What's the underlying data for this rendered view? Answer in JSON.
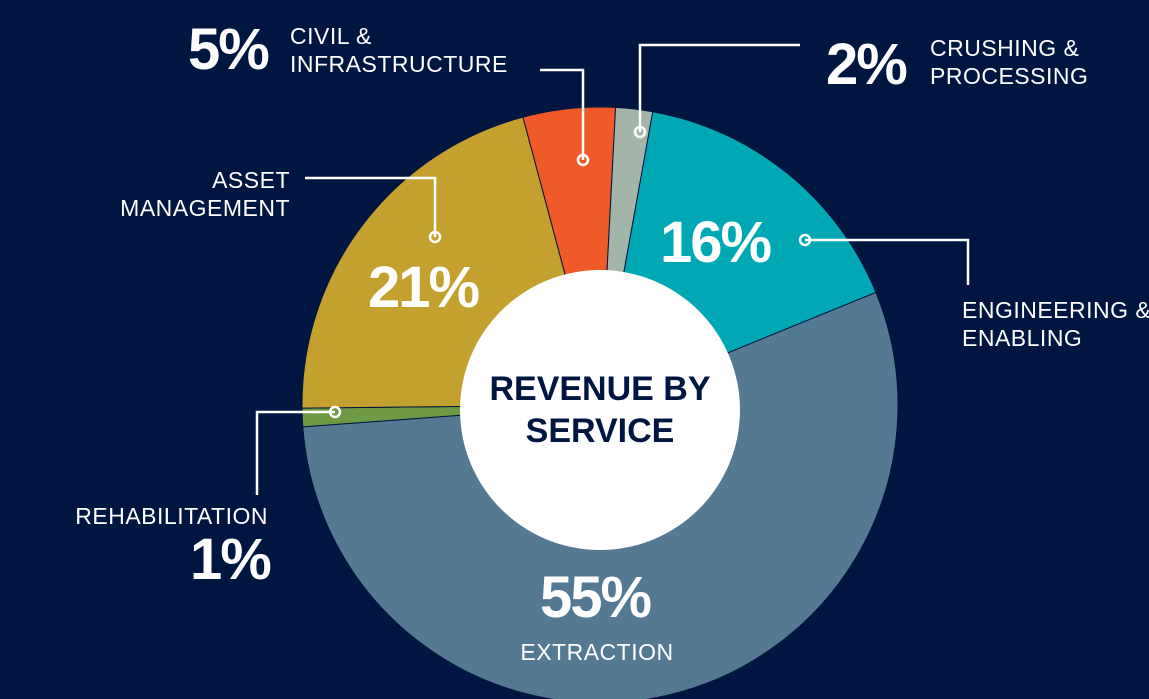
{
  "chart_data": {
    "type": "pie",
    "title": "REVENUE BY SERVICE",
    "categories": [
      "CIVIL & INFRASTRUCTURE",
      "CRUSHING & PROCESSING",
      "ENGINEERING & ENABLING",
      "EXTRACTION",
      "REHABILITATION",
      "ASSET MANAGEMENT"
    ],
    "values": [
      5,
      2,
      16,
      55,
      1,
      21
    ],
    "value_labels": [
      "5%",
      "2%",
      "16%",
      "55%",
      "1%",
      "21%"
    ],
    "colors": [
      "#f05a28",
      "#a3b5a8",
      "#00a8b5",
      "#547a93",
      "#6e9a45",
      "#c4a12f"
    ]
  }
}
